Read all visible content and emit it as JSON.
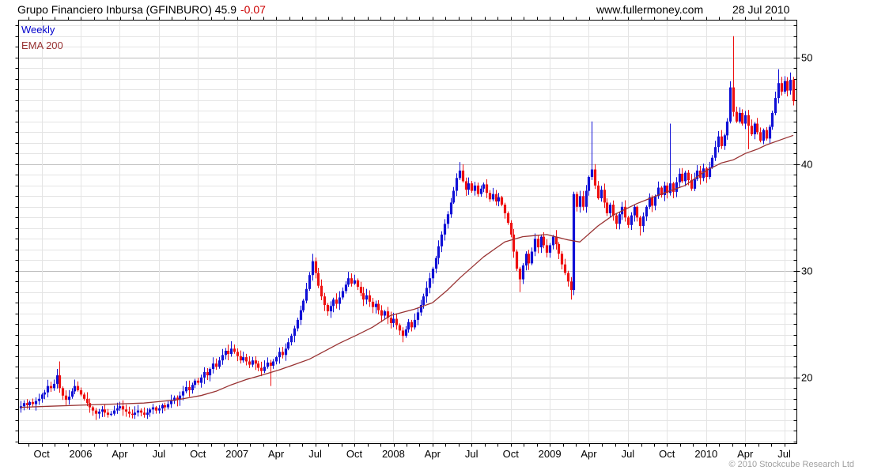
{
  "header": {
    "title": "Grupo Financiero Inbursa (GFINBURO) 45.9",
    "change": "-0.07",
    "website": "www.fullermoney.com",
    "date": "28 Jul 2010"
  },
  "legend": {
    "series": "Weekly",
    "overlay": "EMA 200"
  },
  "footer": {
    "copyright": "© 2010 Stockcube Research Ltd"
  },
  "axes": {
    "y": {
      "labels": [
        20,
        30,
        40,
        50
      ],
      "minor_step": 1
    },
    "x": {
      "tick_labels": [
        "Oct",
        "2006",
        "Apr",
        "Jul",
        "Oct",
        "2007",
        "Apr",
        "Jul",
        "Oct",
        "2008",
        "Apr",
        "Jul",
        "Oct",
        "2009",
        "Apr",
        "Jul",
        "Oct",
        "2010",
        "Apr",
        "Jul"
      ],
      "first_tick_week": 7,
      "weeks_per_tick": 13,
      "months_per_tick": 3
    }
  },
  "chart_data": {
    "type": "candlestick",
    "interval": "weekly",
    "title": "Grupo Financiero Inbursa (GFINBURO)",
    "period": "Aug 2005 - 28 Jul 2010",
    "last_price": 45.9,
    "last_change": -0.07,
    "ylim": [
      13.8,
      53.5
    ],
    "grid": "on",
    "first_open": 17.1,
    "closes": [
      17.3,
      17.6,
      17.4,
      17.7,
      17.5,
      17.8,
      18.0,
      18.4,
      18.6,
      19.2,
      19.0,
      19.4,
      20.2,
      19.0,
      18.3,
      17.9,
      18.2,
      18.7,
      19.2,
      18.8,
      18.4,
      18.0,
      17.6,
      17.2,
      16.9,
      16.6,
      16.8,
      17.0,
      16.7,
      16.5,
      16.6,
      16.9,
      17.1,
      17.3,
      17.0,
      16.8,
      16.6,
      16.5,
      16.7,
      16.9,
      16.7,
      16.5,
      16.7,
      17.0,
      17.2,
      16.9,
      17.1,
      17.4,
      17.2,
      17.5,
      17.8,
      18.1,
      17.9,
      18.3,
      18.7,
      19.1,
      18.8,
      19.3,
      19.7,
      19.5,
      20.0,
      20.5,
      20.2,
      20.8,
      21.3,
      21.0,
      21.6,
      22.1,
      22.5,
      22.2,
      22.7,
      22.4,
      22.0,
      21.6,
      21.9,
      21.5,
      21.2,
      21.6,
      21.3,
      20.9,
      20.6,
      21.0,
      21.4,
      21.1,
      21.5,
      21.9,
      22.4,
      22.1,
      22.7,
      23.3,
      23.9,
      24.6,
      25.4,
      26.3,
      27.2,
      28.3,
      29.6,
      30.9,
      29.8,
      28.6,
      27.6,
      26.8,
      26.2,
      26.7,
      27.3,
      26.9,
      27.5,
      28.1,
      28.7,
      29.3,
      28.8,
      29.1,
      28.5,
      27.9,
      27.3,
      27.7,
      27.1,
      26.6,
      26.9,
      26.3,
      25.8,
      26.2,
      25.6,
      25.1,
      25.5,
      24.9,
      24.4,
      23.9,
      24.5,
      25.2,
      24.7,
      25.4,
      26.1,
      26.8,
      27.6,
      28.4,
      29.3,
      30.2,
      31.2,
      32.3,
      33.4,
      34.4,
      35.3,
      36.4,
      37.5,
      38.7,
      39.4,
      38.4,
      37.6,
      38.2,
      37.5,
      38.0,
      37.2,
      37.7,
      38.1,
      37.3,
      36.7,
      37.2,
      36.5,
      36.9,
      36.2,
      35.4,
      34.5,
      33.4,
      31.8,
      30.2,
      29.2,
      30.5,
      31.6,
      30.7,
      31.8,
      33.0,
      32.2,
      33.2,
      32.4,
      31.7,
      32.4,
      33.2,
      32.5,
      31.6,
      30.6,
      29.8,
      29.0,
      28.2,
      37.2,
      36.0,
      37.0,
      36.0,
      37.5,
      38.8,
      39.5,
      38.0,
      36.8,
      37.6,
      36.4,
      35.4,
      36.2,
      35.2,
      34.4,
      35.3,
      36.0,
      35.0,
      34.3,
      35.2,
      36.0,
      35.0,
      34.2,
      35.1,
      36.0,
      36.9,
      36.1,
      37.0,
      37.8,
      37.1,
      38.0,
      37.3,
      38.2,
      37.4,
      38.3,
      39.1,
      38.4,
      39.2,
      38.5,
      37.7,
      38.6,
      39.4,
      38.7,
      39.6,
      38.8,
      39.7,
      40.6,
      41.6,
      42.6,
      41.7,
      42.7,
      44.0,
      47.2,
      44.9,
      44.0,
      44.8,
      43.8,
      44.6,
      43.6,
      42.8,
      43.8,
      43.0,
      42.2,
      43.2,
      42.4,
      43.5,
      44.8,
      46.2,
      47.6,
      46.8,
      47.8,
      46.9,
      47.9,
      45.9
    ],
    "high_overrides": {
      "13": 21.5,
      "18": 19.8,
      "70": 23.4,
      "97": 31.6,
      "109": 29.9,
      "146": 40.2,
      "190": 44.0,
      "216": 43.8,
      "237": 52.0,
      "252": 48.9,
      "256": 48.6
    },
    "low_overrides": {
      "83": 19.2,
      "127": 23.3,
      "166": 28.0,
      "183": 27.3,
      "206": 33.3,
      "242": 41.4
    },
    "ema200": {
      "name": "EMA 200",
      "points": [
        [
          0,
          17.2
        ],
        [
          10,
          17.3
        ],
        [
          20,
          17.4
        ],
        [
          31,
          17.5
        ],
        [
          41,
          17.6
        ],
        [
          52,
          17.9
        ],
        [
          60,
          18.3
        ],
        [
          65,
          18.7
        ],
        [
          70,
          19.3
        ],
        [
          75,
          19.8
        ],
        [
          80,
          20.2
        ],
        [
          86,
          20.7
        ],
        [
          91,
          21.2
        ],
        [
          96,
          21.7
        ],
        [
          102,
          22.6
        ],
        [
          106,
          23.2
        ],
        [
          112,
          24.0
        ],
        [
          117,
          24.7
        ],
        [
          123,
          25.8
        ],
        [
          127,
          26.1
        ],
        [
          131,
          26.4
        ],
        [
          134,
          26.7
        ],
        [
          137,
          27.0
        ],
        [
          142,
          28.2
        ],
        [
          146,
          29.3
        ],
        [
          150,
          30.3
        ],
        [
          154,
          31.3
        ],
        [
          158,
          32.1
        ],
        [
          161,
          32.7
        ],
        [
          167,
          33.2
        ],
        [
          171,
          33.3
        ],
        [
          175,
          33.4
        ],
        [
          182,
          32.9
        ],
        [
          186,
          32.7
        ],
        [
          192,
          34.2
        ],
        [
          197,
          35.2
        ],
        [
          205,
          36.3
        ],
        [
          213,
          37.2
        ],
        [
          221,
          38.0
        ],
        [
          228,
          39.4
        ],
        [
          233,
          40.1
        ],
        [
          237,
          40.4
        ],
        [
          241,
          41.0
        ],
        [
          245,
          41.4
        ],
        [
          248,
          41.8
        ],
        [
          253,
          42.3
        ],
        [
          257,
          42.7
        ]
      ]
    },
    "colors": {
      "up": "#1010d6",
      "down": "#ee1010",
      "ema": "#993333",
      "grid_minor": "#e4e4e4",
      "grid_major": "#bdbdbd",
      "axis": "#000000"
    }
  }
}
